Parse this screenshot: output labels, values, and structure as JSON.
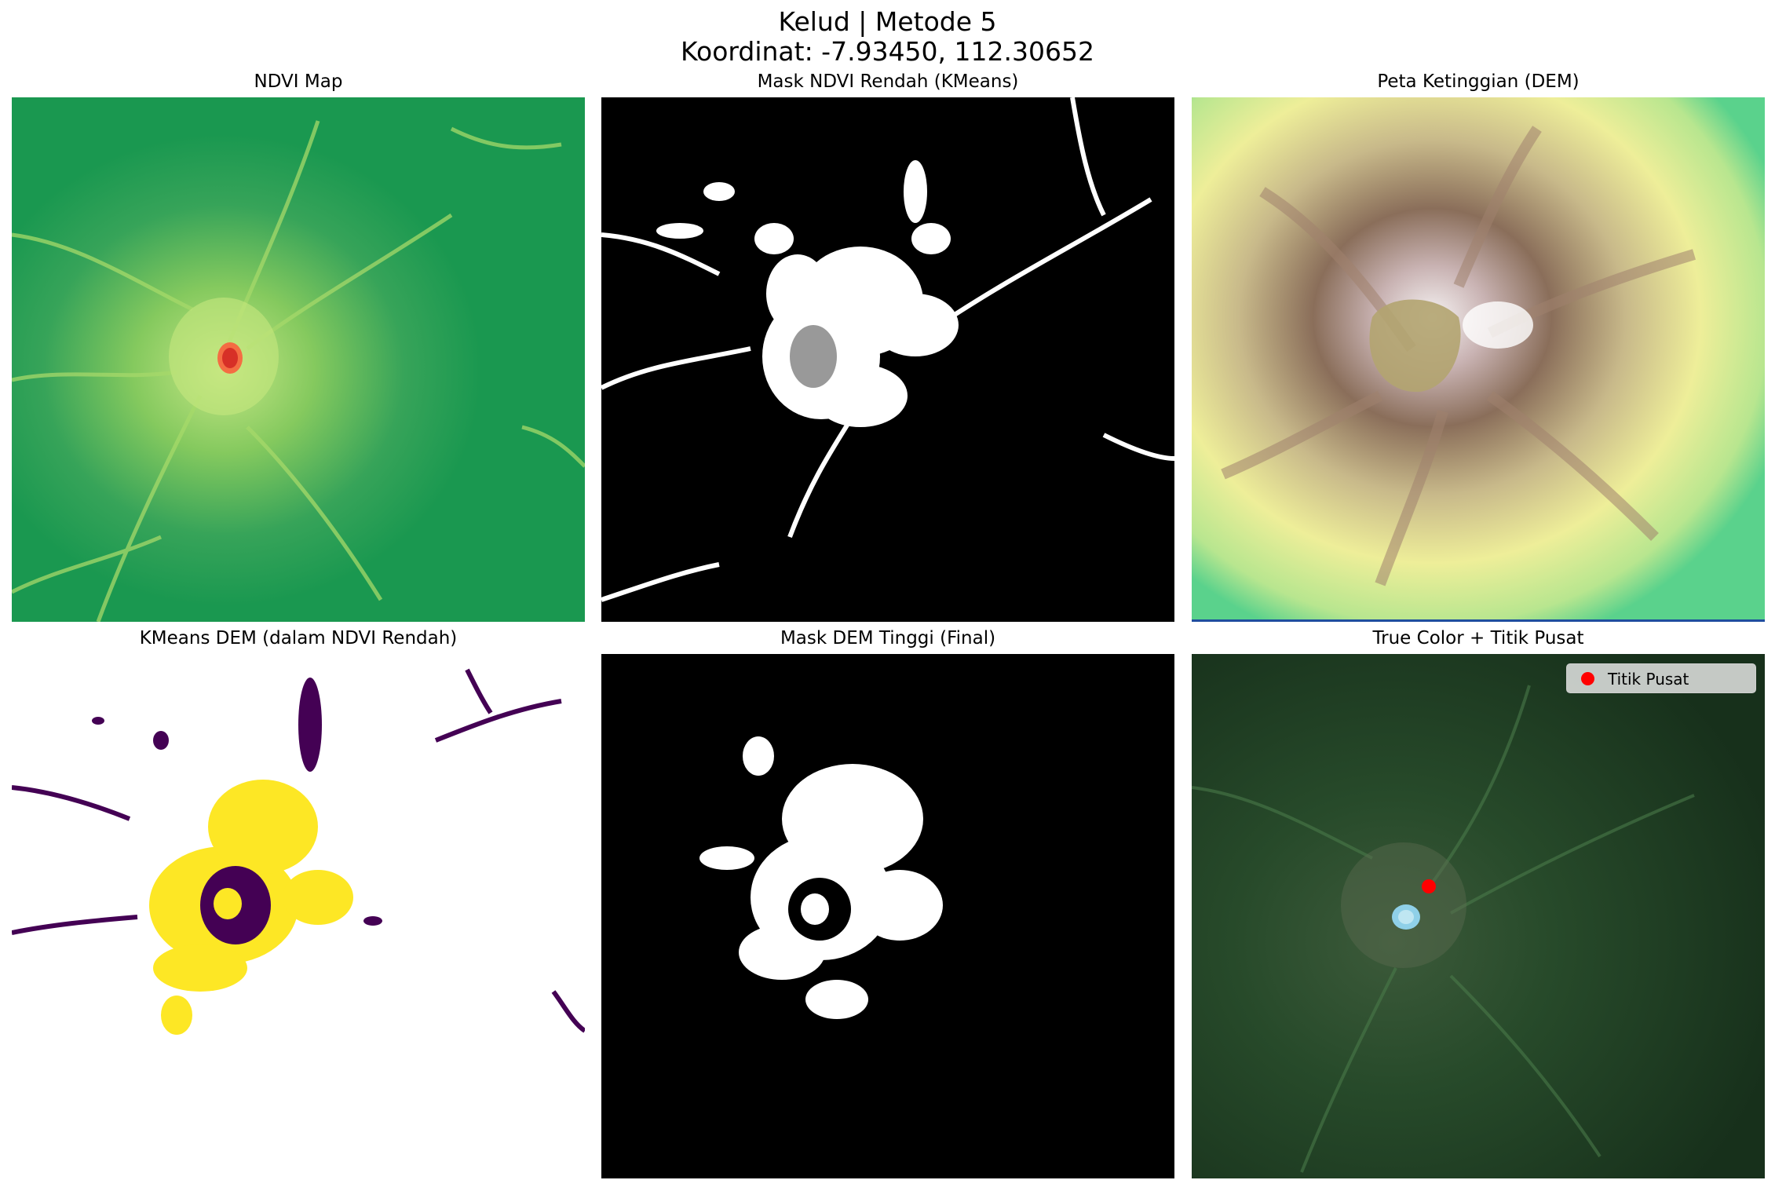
{
  "figure": {
    "title_line1": "Kelud | Metode 5",
    "title_line2": "Koordinat: -7.93450, 112.30652"
  },
  "panels": [
    {
      "title": "NDVI Map",
      "colormap": "RdYlGn"
    },
    {
      "title": "Mask NDVI Rendah (KMeans)",
      "colormap": "binary"
    },
    {
      "title": "Peta Ketinggian (DEM)",
      "colormap": "terrain"
    },
    {
      "title": "KMeans DEM (dalam NDVI Rendah)",
      "colormap": "viridis"
    },
    {
      "title": "Mask DEM Tinggi (Final)",
      "colormap": "binary"
    },
    {
      "title": "True Color + Titik Pusat",
      "colormap": "rgb"
    }
  ],
  "legend": {
    "label": "Titik Pusat",
    "marker_color": "#ff0000",
    "location": "upper right"
  },
  "colors": {
    "ndvi_green": "#1a9850",
    "ndvi_red": "#d73027",
    "mask_white": "#ffffff",
    "mask_black": "#000000",
    "kmeans_yellow": "#fde725",
    "kmeans_purple": "#440154",
    "dem_green": "#5ad28c",
    "dem_yellow": "#eeee99",
    "dem_brown": "#8a6e5a",
    "dem_white": "#f4f0f0",
    "truecolor_forest": "#1f3a22"
  }
}
